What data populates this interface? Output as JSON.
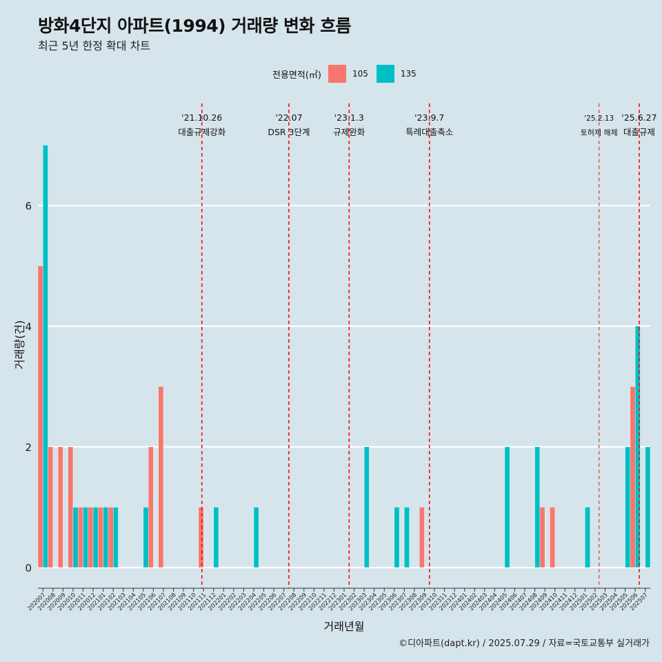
{
  "title": "방화4단지 아파트(1994) 거래량 변화 흐름",
  "subtitle": "최근 5년 한정 확대 차트",
  "caption": "©디아파트(dapt.kr) / 2025.07.29 / 자료=국토교통부 실거래가",
  "legend": {
    "title": "전용면적(㎡)",
    "items": [
      {
        "label": "105",
        "color": "#f8766d"
      },
      {
        "label": "135",
        "color": "#00bfc4"
      }
    ]
  },
  "chart_data": {
    "type": "bar",
    "xlabel": "거래년월",
    "ylabel": "거래량(건)",
    "ylim": [
      -0.35,
      7.0
    ],
    "yticks": [
      0,
      2,
      4,
      6
    ],
    "categories": [
      "202007",
      "202008",
      "202009",
      "202010",
      "202011",
      "202012",
      "202101",
      "202102",
      "202103",
      "202104",
      "202105",
      "202106",
      "202107",
      "202108",
      "202109",
      "202110",
      "202111",
      "202112",
      "202201",
      "202202",
      "202203",
      "202204",
      "202205",
      "202206",
      "202207",
      "202208",
      "202209",
      "202210",
      "202211",
      "202212",
      "202301",
      "202302",
      "202303",
      "202304",
      "202305",
      "202306",
      "202307",
      "202308",
      "202309",
      "202310",
      "202311",
      "202312",
      "202401",
      "202402",
      "202403",
      "202404",
      "202405",
      "202406",
      "202407",
      "202408",
      "202409",
      "202410",
      "202411",
      "202412",
      "202501",
      "202502",
      "202503",
      "202504",
      "202505",
      "202506",
      "202507"
    ],
    "series": [
      {
        "name": "105",
        "color": "#f8766d",
        "values": [
          5,
          2,
          2,
          2,
          1,
          1,
          1,
          1,
          0,
          0,
          0,
          2,
          3,
          0,
          0,
          0,
          1,
          0,
          0,
          0,
          0,
          0,
          0,
          0,
          0,
          0,
          0,
          0,
          0,
          0,
          0,
          0,
          0,
          0,
          0,
          0,
          0,
          0,
          1,
          0,
          0,
          0,
          0,
          0,
          0,
          0,
          0,
          0,
          0,
          0,
          1,
          1,
          0,
          0,
          0,
          0,
          0,
          0,
          0,
          3,
          0
        ]
      },
      {
        "name": "135",
        "color": "#00bfc4",
        "values": [
          7,
          0,
          0,
          1,
          1,
          1,
          1,
          1,
          0,
          0,
          1,
          0,
          0,
          0,
          0,
          0,
          0,
          1,
          0,
          0,
          0,
          1,
          0,
          0,
          0,
          0,
          0,
          0,
          0,
          0,
          0,
          0,
          2,
          0,
          0,
          1,
          1,
          0,
          0,
          0,
          0,
          0,
          0,
          0,
          0,
          0,
          2,
          0,
          0,
          2,
          0,
          0,
          0,
          0,
          1,
          0,
          0,
          0,
          2,
          4,
          2
        ]
      }
    ],
    "events": [
      {
        "date": "'21.10.26",
        "label": "대출규제강화",
        "index": 15.83,
        "dash": "bold"
      },
      {
        "date": "'22.07",
        "label": "DSR 3단계",
        "index": 24.5,
        "dash": "bold"
      },
      {
        "date": "'23.1.3",
        "label": "규제완화",
        "index": 30.5,
        "dash": "bold"
      },
      {
        "date": "'23.9.7",
        "label": "특례대출축소",
        "index": 38.5,
        "dash": "bold"
      },
      {
        "date": "'25.2.13",
        "label": "토허제 해제",
        "index": 55.4,
        "dash": "thin"
      },
      {
        "date": "'25.6.27",
        "label": "대출규제",
        "index": 59.4,
        "dash": "bold"
      }
    ]
  }
}
